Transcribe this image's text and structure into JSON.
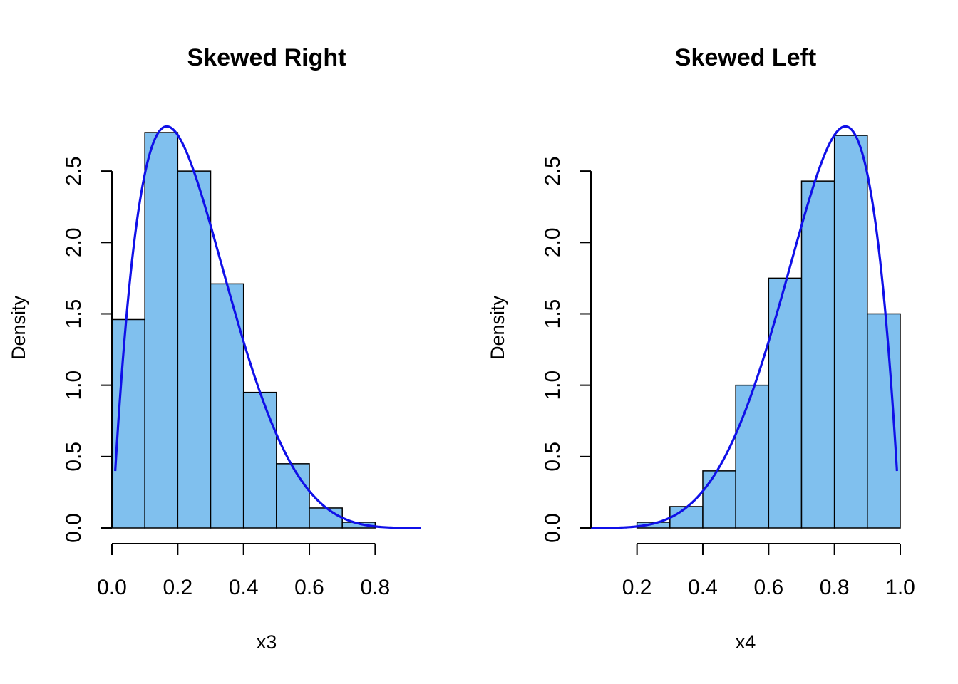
{
  "chart_data": [
    {
      "type": "bar",
      "title": "Skewed Right",
      "xlabel": "x3",
      "ylabel": "Density",
      "bin_edges": [
        0.0,
        0.1,
        0.2,
        0.3,
        0.4,
        0.5,
        0.6,
        0.7,
        0.8,
        0.9
      ],
      "values": [
        1.46,
        2.77,
        2.5,
        1.71,
        0.95,
        0.45,
        0.14,
        0.04,
        0.0
      ],
      "xlim": [
        0.0,
        0.94
      ],
      "ylim": [
        0.0,
        2.85
      ],
      "x_ticks": [
        0.0,
        0.2,
        0.4,
        0.6,
        0.8
      ],
      "x_tick_labels": [
        "0.0",
        "0.2",
        "0.4",
        "0.6",
        "0.8"
      ],
      "y_ticks": [
        0.0,
        0.5,
        1.0,
        1.5,
        2.0,
        2.5
      ],
      "y_tick_labels": [
        "0.0",
        "0.5",
        "1.0",
        "1.5",
        "2.0",
        "2.5"
      ],
      "density_curve": {
        "distribution": "beta",
        "alpha": 2,
        "beta": 6,
        "x_range": [
          0.01,
          0.94
        ],
        "color": "#1010e8"
      },
      "bar_color": "#80c0ee",
      "grid": false
    },
    {
      "type": "bar",
      "title": "Skewed Left",
      "xlabel": "x4",
      "ylabel": "Density",
      "bin_edges": [
        0.1,
        0.2,
        0.3,
        0.4,
        0.5,
        0.6,
        0.7,
        0.8,
        0.9,
        1.0
      ],
      "values": [
        0.0,
        0.04,
        0.15,
        0.4,
        1.0,
        1.75,
        2.43,
        2.75,
        1.5
      ],
      "xlim": [
        0.06,
        1.0
      ],
      "ylim": [
        0.0,
        2.85
      ],
      "x_ticks": [
        0.2,
        0.4,
        0.6,
        0.8,
        1.0
      ],
      "x_tick_labels": [
        "0.2",
        "0.4",
        "0.6",
        "0.8",
        "1.0"
      ],
      "y_ticks": [
        0.0,
        0.5,
        1.0,
        1.5,
        2.0,
        2.5
      ],
      "y_tick_labels": [
        "0.0",
        "0.5",
        "1.0",
        "1.5",
        "2.0",
        "2.5"
      ],
      "density_curve": {
        "distribution": "beta",
        "alpha": 6,
        "beta": 2,
        "x_range": [
          0.06,
          0.99
        ],
        "color": "#1010e8"
      },
      "bar_color": "#80c0ee",
      "grid": false
    }
  ]
}
